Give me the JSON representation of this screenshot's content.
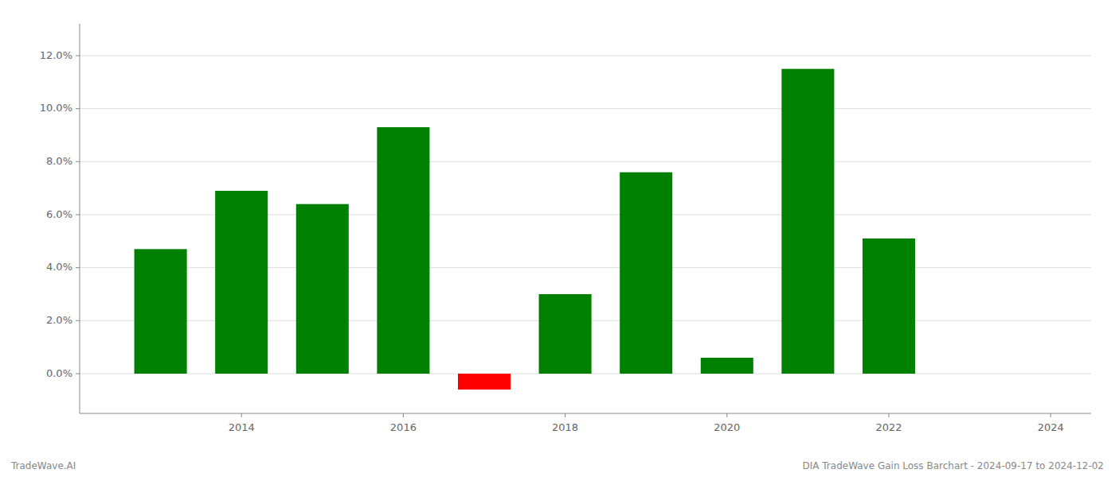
{
  "chart_data": {
    "type": "bar",
    "title": "DIA TradeWave Gain Loss Barchart - 2024-09-17 to 2024-12-02",
    "annotations": [
      "TradeWave.AI"
    ],
    "x": [
      2013,
      2014,
      2015,
      2016,
      2017,
      2018,
      2019,
      2020,
      2021,
      2022
    ],
    "values": [
      0.047,
      0.069,
      0.064,
      0.093,
      -0.006,
      0.03,
      0.076,
      0.006,
      0.115,
      0.051
    ],
    "colors": [
      "#008000",
      "#008000",
      "#008000",
      "#008000",
      "#ff0000",
      "#008000",
      "#008000",
      "#008000",
      "#008000",
      "#008000"
    ],
    "ylim": [
      -0.015,
      0.132
    ],
    "yticks": [
      {
        "value": 0.0,
        "label": "0.0%"
      },
      {
        "value": 0.02,
        "label": "2.0%"
      },
      {
        "value": 0.04,
        "label": "4.0%"
      },
      {
        "value": 0.06,
        "label": "6.0%"
      },
      {
        "value": 0.08,
        "label": "8.0%"
      },
      {
        "value": 0.1,
        "label": "10.0%"
      },
      {
        "value": 0.12,
        "label": "12.0%"
      }
    ],
    "xlim": [
      2012.0,
      2024.5
    ],
    "xticks": [
      2014,
      2016,
      2018,
      2020,
      2022,
      2024
    ],
    "grid": true
  }
}
